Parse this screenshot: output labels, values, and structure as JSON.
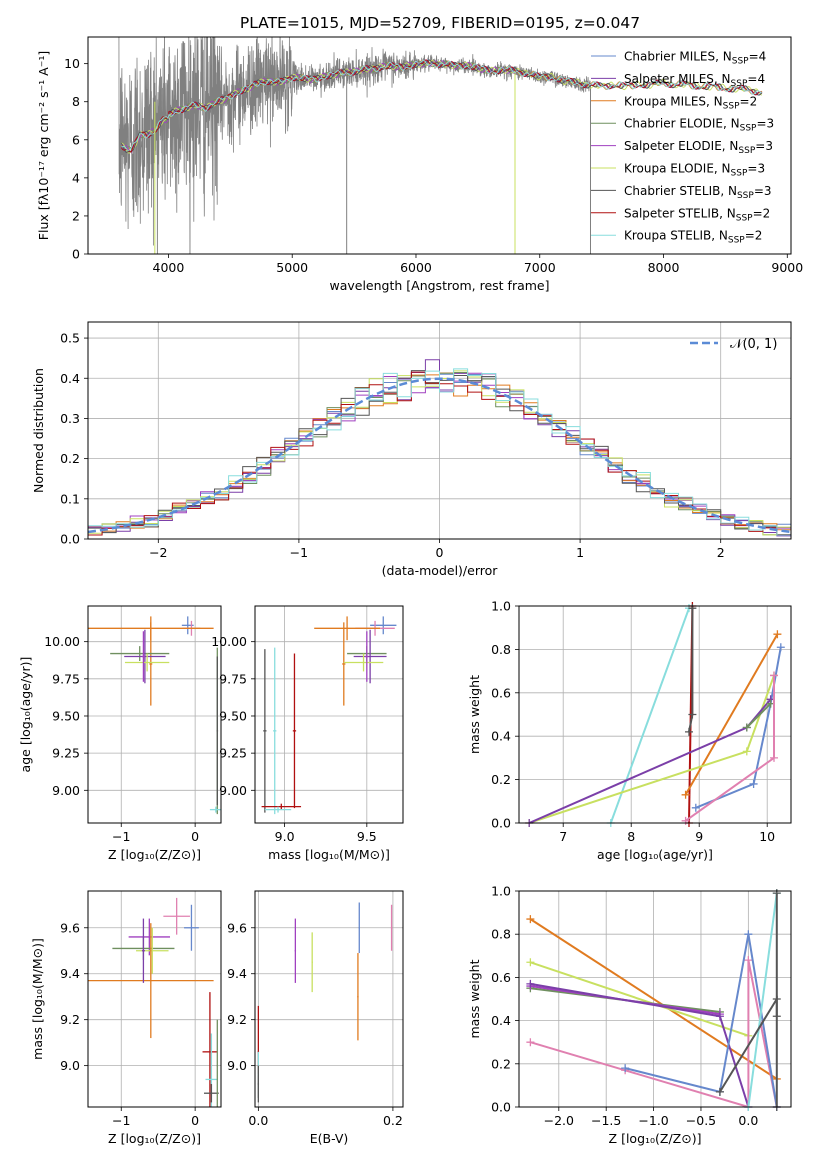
{
  "figure": {
    "title": "PLATE=1015, MJD=52709, FIBERID=0195, z=0.047"
  },
  "colors": {
    "chabrier_miles": "#6688cc",
    "salpeter_miles": "#7b3fa8",
    "kroupa_miles": "#e07b20",
    "chabrier_elodie": "#6f8f5f",
    "salpeter_elodie": "#a040c0",
    "kroupa_elodie": "#c8e060",
    "chabrier_stelib": "#555555",
    "salpeter_stelib": "#b01010",
    "kroupa_stelib": "#88dddd",
    "pink": "#e080b0",
    "observed": "#808080",
    "normal_curve": "#5b8bd6"
  },
  "chart_data": [
    {
      "type": "line",
      "id": "spectrum",
      "xlabel": "wavelength [Angstrom, rest frame]",
      "ylabel": "Flux [fλ10⁻¹⁷ erg cm⁻² s⁻¹ A⁻¹]",
      "xlim": [
        3350,
        9030
      ],
      "ylim": [
        0,
        11.4
      ],
      "xticks": [
        4000,
        5000,
        6000,
        7000,
        8000,
        9000
      ],
      "yticks": [
        0,
        2,
        4,
        6,
        8,
        10
      ],
      "grid": false,
      "legend_position": "right",
      "legend": [
        {
          "base": "Chabrier MILES, N",
          "sub": "SSP",
          "tail": "=4",
          "color_key": "chabrier_miles"
        },
        {
          "base": "Salpeter MILES, N",
          "sub": "SSP",
          "tail": "=4",
          "color_key": "salpeter_miles"
        },
        {
          "base": "Kroupa MILES, N",
          "sub": "SSP",
          "tail": "=2",
          "color_key": "kroupa_miles"
        },
        {
          "base": "Chabrier ELODIE, N",
          "sub": "SSP",
          "tail": "=3",
          "color_key": "chabrier_elodie"
        },
        {
          "base": "Salpeter ELODIE, N",
          "sub": "SSP",
          "tail": "=3",
          "color_key": "salpeter_elodie"
        },
        {
          "base": "Kroupa ELODIE, N",
          "sub": "SSP",
          "tail": "=3",
          "color_key": "kroupa_elodie"
        },
        {
          "base": "Chabrier STELIB, N",
          "sub": "SSP",
          "tail": "=3",
          "color_key": "chabrier_stelib"
        },
        {
          "base": "Salpeter STELIB, N",
          "sub": "SSP",
          "tail": "=2",
          "color_key": "salpeter_stelib"
        },
        {
          "base": "Kroupa STELIB, N",
          "sub": "SSP",
          "tail": "=2",
          "color_key": "kroupa_stelib"
        }
      ],
      "continuum": [
        [
          3620,
          6.0
        ],
        [
          3700,
          5.8
        ],
        [
          3800,
          6.5
        ],
        [
          3900,
          6.9
        ],
        [
          4000,
          7.3
        ],
        [
          4100,
          7.6
        ],
        [
          4200,
          7.8
        ],
        [
          4300,
          7.7
        ],
        [
          4400,
          8.0
        ],
        [
          4500,
          8.3
        ],
        [
          4600,
          8.6
        ],
        [
          4700,
          8.9
        ],
        [
          4800,
          9.1
        ],
        [
          4900,
          9.0
        ],
        [
          5000,
          9.3
        ],
        [
          5100,
          9.2
        ],
        [
          5200,
          9.2
        ],
        [
          5300,
          9.4
        ],
        [
          5400,
          9.5
        ],
        [
          5500,
          9.6
        ],
        [
          5600,
          9.7
        ],
        [
          5700,
          9.8
        ],
        [
          5800,
          9.9
        ],
        [
          5900,
          9.8
        ],
        [
          6000,
          10.0
        ],
        [
          6100,
          10.0
        ],
        [
          6200,
          10.0
        ],
        [
          6300,
          9.9
        ],
        [
          6400,
          9.9
        ],
        [
          6500,
          9.8
        ],
        [
          6600,
          9.6
        ],
        [
          6700,
          9.7
        ],
        [
          6800,
          9.6
        ],
        [
          6900,
          9.5
        ],
        [
          7000,
          9.3
        ],
        [
          7100,
          9.3
        ],
        [
          7200,
          9.1
        ],
        [
          7300,
          9.0
        ],
        [
          7400,
          8.9
        ],
        [
          7500,
          8.8
        ],
        [
          7600,
          8.9
        ],
        [
          7700,
          8.8
        ],
        [
          7800,
          8.9
        ],
        [
          7900,
          8.9
        ],
        [
          8000,
          9.0
        ],
        [
          8100,
          8.9
        ],
        [
          8200,
          8.9
        ],
        [
          8300,
          8.8
        ],
        [
          8400,
          8.8
        ],
        [
          8500,
          8.7
        ],
        [
          8600,
          8.7
        ],
        [
          8700,
          8.6
        ],
        [
          8800,
          8.5
        ]
      ],
      "observed_range": [
        3600,
        7410
      ],
      "model_range": [
        3620,
        8800
      ]
    },
    {
      "type": "bar",
      "id": "residuals",
      "xlabel": "(data-model)/error",
      "ylabel": "Normed distribution",
      "xlim": [
        -2.5,
        2.5
      ],
      "ylim": [
        0,
        0.54
      ],
      "xticks": [
        -2,
        -1,
        0,
        1,
        2
      ],
      "yticks": [
        0.0,
        0.1,
        0.2,
        0.3,
        0.4,
        0.5
      ],
      "grid": true,
      "legend_position": "top-right",
      "legend_label": "𝒩(0, 1)",
      "bin_width": 0.1
    },
    {
      "type": "scatter",
      "id": "age_vs_Z",
      "xlabel": "Z [log₁₀(Z/Z⊙)]",
      "ylabel": "age  [log₁₀(age/yr)]",
      "xlim": [
        -1.45,
        0.35
      ],
      "ylim": [
        8.78,
        10.24
      ],
      "xticks": [
        -1,
        0
      ],
      "yticks": [
        9.0,
        9.25,
        9.5,
        9.75,
        10.0
      ],
      "grid": true,
      "points": [
        {
          "x": -0.1,
          "y": 10.11,
          "xerr": 0.08,
          "yerr": 0.06,
          "c": "chabrier_miles"
        },
        {
          "x": -0.05,
          "y": 10.09,
          "xerr": 0.12,
          "yerr": 0.05,
          "c": "pink"
        },
        {
          "x": -0.6,
          "y": 10.09,
          "xerr": 0.85,
          "yerr": 0.08,
          "c": "kroupa_miles"
        },
        {
          "x": -0.6,
          "y": 9.85,
          "xerr": 0.02,
          "yerr": 0.28,
          "c": "kroupa_miles"
        },
        {
          "x": -0.75,
          "y": 9.92,
          "xerr": 0.4,
          "yerr": 0.05,
          "c": "chabrier_elodie"
        },
        {
          "x": -0.68,
          "y": 9.9,
          "xerr": 0.28,
          "yerr": 0.18,
          "c": "salpeter_miles"
        },
        {
          "x": -0.65,
          "y": 9.86,
          "xerr": 0.3,
          "yerr": 0.06,
          "c": "kroupa_elodie"
        },
        {
          "x": -0.7,
          "y": 9.9,
          "xerr": 0.02,
          "yerr": 0.17,
          "c": "salpeter_elodie"
        },
        {
          "x": 0.3,
          "y": 9.4,
          "xerr": 0.01,
          "yerr": 0.56,
          "c": "chabrier_elodie"
        },
        {
          "x": 0.28,
          "y": 8.87,
          "xerr": 0.08,
          "yerr": 0.02,
          "c": "kroupa_stelib"
        },
        {
          "x": 0.3,
          "y": 9.4,
          "xerr": 0.01,
          "yerr": 0.5,
          "c": "chabrier_stelib"
        }
      ]
    },
    {
      "type": "scatter",
      "id": "age_vs_mass",
      "xlabel": "mass [log₁₀(M/M⊙)]",
      "ylabel": "",
      "xlim": [
        8.82,
        9.72
      ],
      "ylim": [
        8.78,
        10.24
      ],
      "xticks": [
        9.0,
        9.5
      ],
      "yticks": [
        9.0,
        9.25,
        9.5,
        9.75,
        10.0
      ],
      "grid": true,
      "points": [
        {
          "x": 9.6,
          "y": 10.11,
          "xerr": 0.08,
          "yerr": 0.06,
          "c": "chabrier_miles"
        },
        {
          "x": 9.55,
          "y": 10.09,
          "xerr": 0.12,
          "yerr": 0.05,
          "c": "pink"
        },
        {
          "x": 9.38,
          "y": 10.09,
          "xerr": 0.2,
          "yerr": 0.08,
          "c": "kroupa_miles"
        },
        {
          "x": 9.36,
          "y": 9.85,
          "xerr": 0.01,
          "yerr": 0.28,
          "c": "kroupa_miles"
        },
        {
          "x": 9.5,
          "y": 9.92,
          "xerr": 0.12,
          "yerr": 0.05,
          "c": "chabrier_elodie"
        },
        {
          "x": 9.52,
          "y": 9.9,
          "xerr": 0.1,
          "yerr": 0.18,
          "c": "salpeter_miles"
        },
        {
          "x": 9.48,
          "y": 9.86,
          "xerr": 0.12,
          "yerr": 0.06,
          "c": "kroupa_elodie"
        },
        {
          "x": 9.5,
          "y": 9.9,
          "xerr": 0.01,
          "yerr": 0.17,
          "c": "salpeter_elodie"
        },
        {
          "x": 9.06,
          "y": 9.4,
          "xerr": 0.01,
          "yerr": 0.52,
          "c": "salpeter_stelib"
        },
        {
          "x": 8.94,
          "y": 9.4,
          "xerr": 0.01,
          "yerr": 0.56,
          "c": "kroupa_stelib"
        },
        {
          "x": 8.88,
          "y": 9.4,
          "xerr": 0.01,
          "yerr": 0.55,
          "c": "chabrier_stelib"
        },
        {
          "x": 8.98,
          "y": 8.89,
          "xerr": 0.12,
          "yerr": 0.02,
          "c": "salpeter_stelib"
        },
        {
          "x": 8.96,
          "y": 8.87,
          "xerr": 0.08,
          "yerr": 0.02,
          "c": "kroupa_stelib"
        }
      ]
    },
    {
      "type": "line",
      "id": "mw_vs_age",
      "xlabel": "age  [log₁₀(age/yr)]",
      "ylabel": "mass weight",
      "xlim": [
        6.35,
        10.35
      ],
      "ylim": [
        0,
        1.0
      ],
      "xticks": [
        7,
        8,
        9,
        10
      ],
      "yticks": [
        0.0,
        0.2,
        0.4,
        0.6,
        0.8,
        1.0
      ],
      "grid": true,
      "series": [
        {
          "c": "kroupa_stelib",
          "points": [
            [
              7.7,
              0.0
            ],
            [
              8.85,
              0.99
            ]
          ]
        },
        {
          "c": "salpeter_stelib",
          "points": [
            [
              8.85,
              0.0
            ],
            [
              8.9,
              1.0
            ]
          ]
        },
        {
          "c": "chabrier_stelib",
          "points": [
            [
              8.85,
              0.42
            ],
            [
              8.9,
              0.5
            ],
            [
              8.9,
              0.99
            ]
          ]
        },
        {
          "c": "kroupa_miles",
          "points": [
            [
              8.8,
              0.13
            ],
            [
              10.15,
              0.87
            ]
          ]
        },
        {
          "c": "chabrier_miles",
          "points": [
            [
              8.95,
              0.07
            ],
            [
              9.8,
              0.18
            ],
            [
              10.05,
              0.55
            ],
            [
              10.2,
              0.81
            ]
          ]
        },
        {
          "c": "kroupa_elodie",
          "points": [
            [
              6.5,
              0.0
            ],
            [
              9.7,
              0.33
            ],
            [
              10.1,
              0.68
            ]
          ]
        },
        {
          "c": "salpeter_miles",
          "points": [
            [
              6.5,
              0.0
            ],
            [
              9.7,
              0.44
            ],
            [
              10.05,
              0.57
            ]
          ]
        },
        {
          "c": "chabrier_elodie",
          "points": [
            [
              9.7,
              0.44
            ],
            [
              10.05,
              0.55
            ]
          ]
        },
        {
          "c": "pink",
          "points": [
            [
              8.8,
              0.01
            ],
            [
              10.1,
              0.3
            ],
            [
              10.1,
              0.68
            ]
          ]
        }
      ]
    },
    {
      "type": "scatter",
      "id": "mass_vs_Z",
      "xlabel": "Z [log₁₀(Z/Z⊙)]",
      "ylabel": "mass [log₁₀(M/M⊙)]",
      "xlim": [
        -1.45,
        0.35
      ],
      "ylim": [
        8.82,
        9.76
      ],
      "xticks": [
        -1,
        0
      ],
      "yticks": [
        9.0,
        9.2,
        9.4,
        9.6
      ],
      "grid": true,
      "points": [
        {
          "x": -0.25,
          "y": 9.65,
          "xerr": 0.18,
          "yerr": 0.08,
          "c": "pink"
        },
        {
          "x": -0.05,
          "y": 9.6,
          "xerr": 0.1,
          "yerr": 0.1,
          "c": "chabrier_miles"
        },
        {
          "x": -0.62,
          "y": 9.56,
          "xerr": 0.28,
          "yerr": 0.08,
          "c": "salpeter_elodie"
        },
        {
          "x": -0.7,
          "y": 9.51,
          "xerr": 0.42,
          "yerr": 0.05,
          "c": "chabrier_elodie"
        },
        {
          "x": -0.58,
          "y": 9.5,
          "xerr": 0.22,
          "yerr": 0.1,
          "c": "kroupa_elodie"
        },
        {
          "x": -0.6,
          "y": 9.37,
          "xerr": 0.85,
          "yerr": 0.25,
          "c": "kroupa_miles"
        },
        {
          "x": -0.7,
          "y": 9.5,
          "xerr": 0.02,
          "yerr": 0.14,
          "c": "salpeter_miles"
        },
        {
          "x": 0.2,
          "y": 9.06,
          "xerr": 0.1,
          "yerr": 0.26,
          "c": "salpeter_stelib"
        },
        {
          "x": 0.22,
          "y": 8.94,
          "xerr": 0.08,
          "yerr": 0.2,
          "c": "kroupa_stelib"
        },
        {
          "x": 0.22,
          "y": 8.88,
          "xerr": 0.1,
          "yerr": 0.04,
          "c": "chabrier_stelib"
        },
        {
          "x": 0.3,
          "y": 9.0,
          "xerr": 0.01,
          "yerr": 0.2,
          "c": "chabrier_elodie"
        }
      ]
    },
    {
      "type": "scatter",
      "id": "mass_vs_ebv",
      "xlabel": "E(B-V)",
      "ylabel": "",
      "xlim": [
        -0.005,
        0.215
      ],
      "ylim": [
        8.82,
        9.76
      ],
      "xticks": [
        0.0,
        0.2
      ],
      "yticks": [
        9.0,
        9.2,
        9.4,
        9.6
      ],
      "grid": true,
      "points": [
        {
          "x": 0.0,
          "y": 9.06,
          "xerr": 0.001,
          "yerr": 0.2,
          "c": "salpeter_stelib"
        },
        {
          "x": 0.0,
          "y": 8.96,
          "xerr": 0.001,
          "yerr": 0.1,
          "c": "kroupa_stelib"
        },
        {
          "x": 0.0,
          "y": 8.92,
          "xerr": 0.001,
          "yerr": 0.08,
          "c": "chabrier_stelib"
        },
        {
          "x": 0.055,
          "y": 9.5,
          "xerr": 0.001,
          "yerr": 0.14,
          "c": "salpeter_elodie"
        },
        {
          "x": 0.08,
          "y": 9.45,
          "xerr": 0.001,
          "yerr": 0.13,
          "c": "kroupa_elodie"
        },
        {
          "x": 0.148,
          "y": 9.3,
          "xerr": 0.001,
          "yerr": 0.19,
          "c": "kroupa_miles"
        },
        {
          "x": 0.15,
          "y": 9.6,
          "xerr": 0.001,
          "yerr": 0.11,
          "c": "chabrier_miles"
        },
        {
          "x": 0.198,
          "y": 9.6,
          "xerr": 0.001,
          "yerr": 0.1,
          "c": "pink"
        }
      ]
    },
    {
      "type": "line",
      "id": "mw_vs_Z",
      "xlabel": "Z [log₁₀(Z/Z⊙)]",
      "ylabel": "mass weight",
      "xlim": [
        -2.42,
        0.45
      ],
      "ylim": [
        0,
        1.0
      ],
      "xticks": [
        -2.0,
        -1.5,
        -1.0,
        -0.5,
        0.0
      ],
      "yticks": [
        0.0,
        0.2,
        0.4,
        0.6,
        0.8,
        1.0
      ],
      "grid": true,
      "series": [
        {
          "c": "kroupa_miles",
          "points": [
            [
              -2.3,
              0.87
            ],
            [
              0.3,
              0.13
            ]
          ]
        },
        {
          "c": "kroupa_elodie",
          "points": [
            [
              -2.3,
              0.67
            ],
            [
              0.0,
              0.33
            ]
          ]
        },
        {
          "c": "chabrier_elodie",
          "points": [
            [
              -2.3,
              0.55
            ],
            [
              -0.3,
              0.44
            ]
          ]
        },
        {
          "c": "salpeter_elodie",
          "points": [
            [
              -2.3,
              0.56
            ],
            [
              -0.3,
              0.43
            ]
          ]
        },
        {
          "c": "salpeter_miles",
          "points": [
            [
              -2.3,
              0.57
            ],
            [
              -0.3,
              0.42
            ],
            [
              0.0,
              0.0
            ]
          ]
        },
        {
          "c": "pink",
          "points": [
            [
              -2.3,
              0.3
            ],
            [
              -1.3,
              0.17
            ],
            [
              0.0,
              0.0
            ],
            [
              0.0,
              0.68
            ],
            [
              0.3,
              0.0
            ]
          ]
        },
        {
          "c": "chabrier_miles",
          "points": [
            [
              -1.3,
              0.18
            ],
            [
              -0.3,
              0.07
            ],
            [
              0.0,
              0.8
            ],
            [
              0.3,
              0.0
            ]
          ]
        },
        {
          "c": "kroupa_stelib",
          "points": [
            [
              0.0,
              0.0
            ],
            [
              0.3,
              0.99
            ]
          ]
        },
        {
          "c": "chabrier_stelib",
          "points": [
            [
              -0.3,
              0.07
            ],
            [
              0.3,
              0.5
            ],
            [
              0.3,
              0.42
            ]
          ]
        },
        {
          "c": "chabrier_stelib",
          "points": [
            [
              0.3,
              0.99
            ],
            [
              0.3,
              0.0
            ]
          ]
        }
      ]
    }
  ]
}
